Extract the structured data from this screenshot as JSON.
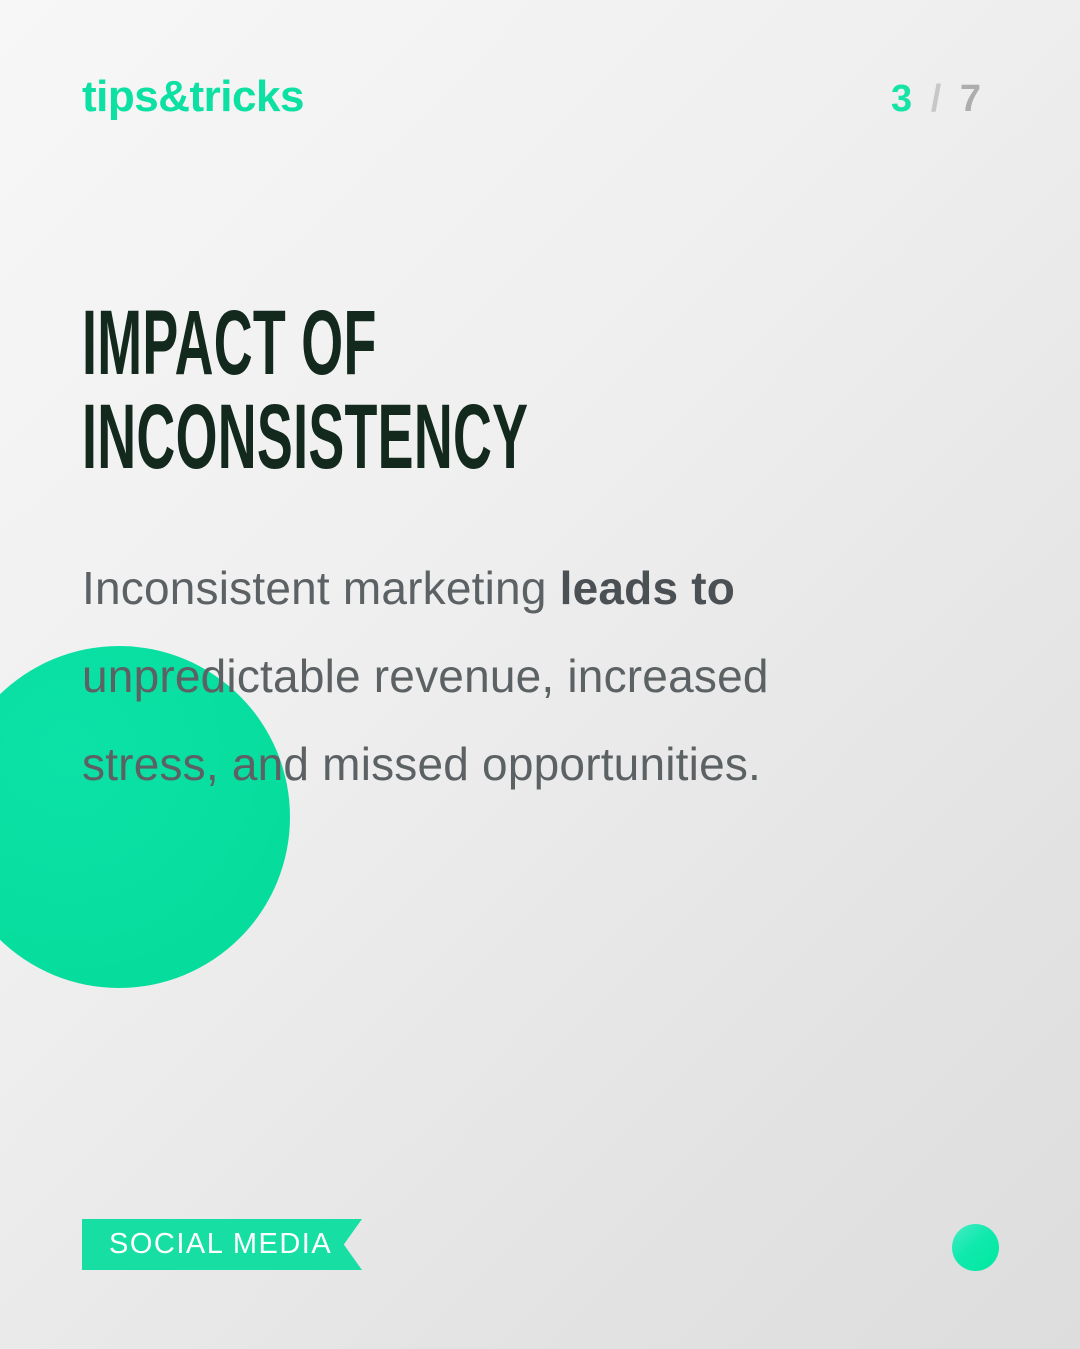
{
  "header": {
    "brand": "tips&tricks",
    "pagination": {
      "current": "3",
      "separator": "/",
      "total": "7"
    }
  },
  "title": {
    "line1": "IMPACT OF",
    "line2": "INCONSISTENCY"
  },
  "body": {
    "line1_regular": "Inconsistent marketing ",
    "line1_bold": "leads to",
    "line2": "unpredictable revenue, increased",
    "line3": "stress, and missed opportunities."
  },
  "footer": {
    "category_label": "SOCIAL MEDIA"
  },
  "colors": {
    "accent_green": "#0ce0a2",
    "large_circle_green": "#08dfa0",
    "ribbon_green": "#17dfa4",
    "title_dark_green": "#13291e",
    "body_gray": "#5c6164",
    "body_bold_gray": "#4b5054",
    "pagination_separator_gray": "#c7c7c7",
    "pagination_total_gray": "#adadad",
    "background_light": "#f7f7f7",
    "background_dark": "#dddddd"
  }
}
